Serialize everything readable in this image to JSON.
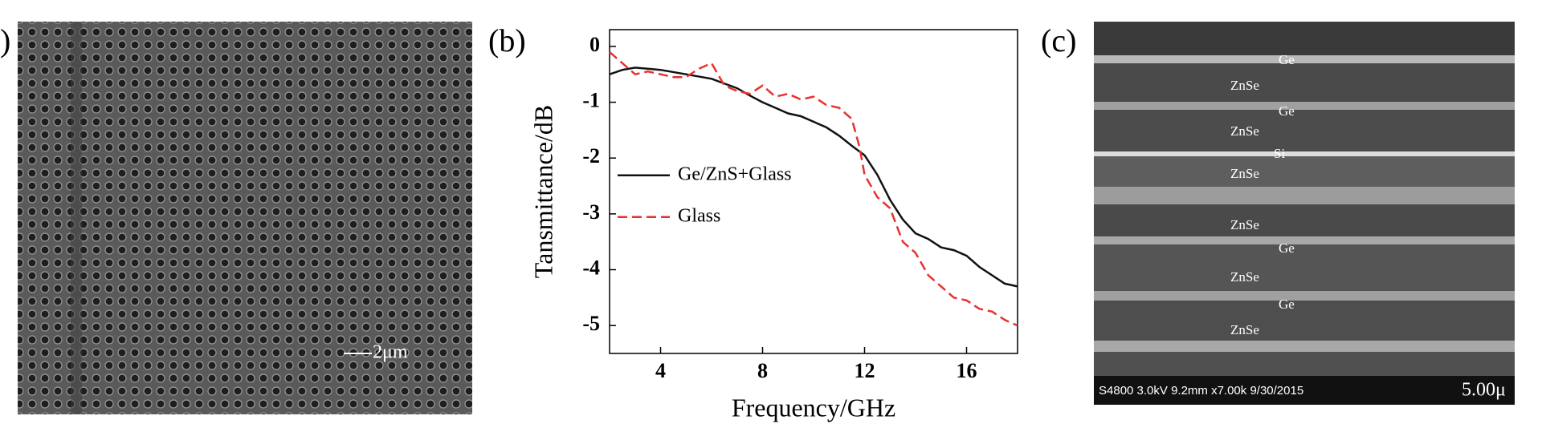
{
  "panel_a": {
    "label": ")",
    "scale_bar": "2μm"
  },
  "chart_data": {
    "type": "line",
    "panel_label": "(b)",
    "x_label": "Frequency/GHz",
    "y_label": "Tansmittance/dB",
    "xlim": [
      2,
      18
    ],
    "xticks": [
      4,
      8,
      12,
      16
    ],
    "ylim": [
      -5.5,
      0.3
    ],
    "yticks": [
      0,
      -1,
      -2,
      -3,
      -4,
      -5
    ],
    "legend": "center-left",
    "series": [
      {
        "name": "Ge/ZnS+Glass",
        "color": "#111111",
        "line_style": "solid",
        "x": [
          2,
          2.5,
          3,
          3.5,
          4,
          5,
          6,
          7,
          7.5,
          8,
          8.5,
          9,
          9.5,
          10,
          10.5,
          11,
          11.5,
          12,
          12.5,
          13,
          13.5,
          14,
          14.5,
          15,
          15.5,
          16,
          16.5,
          17,
          17.5,
          18
        ],
        "values": [
          -0.5,
          -0.42,
          -0.38,
          -0.4,
          -0.42,
          -0.5,
          -0.58,
          -0.75,
          -0.88,
          -1.0,
          -1.1,
          -1.2,
          -1.25,
          -1.35,
          -1.45,
          -1.6,
          -1.78,
          -1.95,
          -2.3,
          -2.75,
          -3.1,
          -3.35,
          -3.45,
          -3.6,
          -3.65,
          -3.75,
          -3.95,
          -4.1,
          -4.25,
          -4.3
        ]
      },
      {
        "name": "Glass",
        "color": "#e8312f",
        "line_style": "dashed",
        "x": [
          2,
          2.5,
          3,
          3.5,
          4,
          4.5,
          5,
          5.5,
          6,
          6.5,
          7,
          7.5,
          8,
          8.5,
          9,
          9.5,
          10,
          10.5,
          11,
          11.5,
          11.8,
          12,
          12.5,
          13,
          13.5,
          14,
          14.5,
          15,
          15.5,
          16,
          16.5,
          17,
          17.5,
          18
        ],
        "values": [
          -0.1,
          -0.3,
          -0.5,
          -0.45,
          -0.5,
          -0.55,
          -0.55,
          -0.4,
          -0.3,
          -0.7,
          -0.8,
          -0.85,
          -0.7,
          -0.9,
          -0.85,
          -0.95,
          -0.9,
          -1.05,
          -1.1,
          -1.3,
          -1.8,
          -2.3,
          -2.7,
          -2.9,
          -3.5,
          -3.7,
          -4.1,
          -4.3,
          -4.5,
          -4.55,
          -4.7,
          -4.75,
          -4.9,
          -5.0
        ]
      }
    ]
  },
  "panel_c": {
    "label": "(c)",
    "layers": [
      "Ge",
      "ZnSe",
      "Ge",
      "ZnSe",
      "Si",
      "ZnSe",
      "ZnSe",
      "Ge",
      "ZnSe",
      "Ge",
      "ZnSe"
    ],
    "info": "S4800 3.0kV 9.2mm x7.00k 9/30/2015",
    "scale_bar": "5.00μ"
  }
}
